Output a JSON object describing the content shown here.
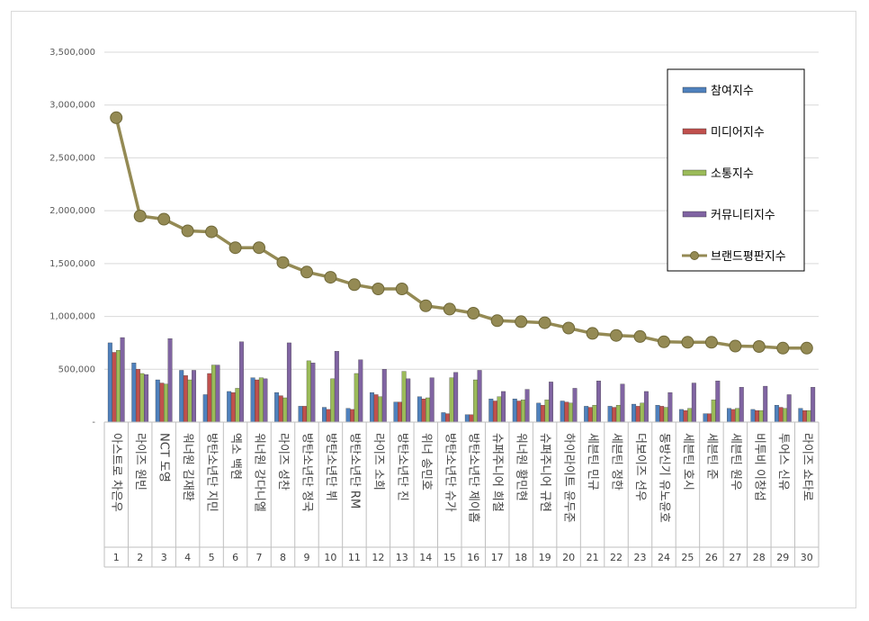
{
  "chart_data": {
    "type": "bar",
    "categories": [
      "아스트로 차은우",
      "라이즈 원빈",
      "NCT 도영",
      "워너원 김재환",
      "방탄소년단 지민",
      "엑소 백현",
      "워너원 강다니엘",
      "라이즈 성찬",
      "방탄소년단 정국",
      "방탄소년단 뷔",
      "방탄소년단 RM",
      "라이즈 소희",
      "방탄소년단 진",
      "위너 송민호",
      "방탄소년단 슈가",
      "방탄소년단 제이홉",
      "슈퍼주니어 희철",
      "워너원 황민현",
      "슈퍼주니어 규현",
      "하이라이트 윤두준",
      "세븐틴 민규",
      "세븐틴 정한",
      "더보이즈 선우",
      "동방신기 유노윤호",
      "세븐틴 호시",
      "세븐틴 준",
      "세븐틴 원우",
      "비투비 이창섭",
      "투어스 신유",
      "라이즈 쇼타로"
    ],
    "ranks": [
      "1",
      "2",
      "3",
      "4",
      "5",
      "6",
      "7",
      "8",
      "9",
      "10",
      "11",
      "12",
      "13",
      "14",
      "15",
      "16",
      "17",
      "18",
      "19",
      "20",
      "21",
      "22",
      "23",
      "24",
      "25",
      "26",
      "27",
      "28",
      "29",
      "30"
    ],
    "series": [
      {
        "name": "참여지수",
        "kind": "bar",
        "color": "#4f81bd",
        "values": [
          750000,
          560000,
          400000,
          490000,
          260000,
          290000,
          420000,
          280000,
          150000,
          140000,
          130000,
          280000,
          190000,
          240000,
          90000,
          70000,
          220000,
          220000,
          180000,
          200000,
          150000,
          150000,
          170000,
          160000,
          120000,
          80000,
          130000,
          120000,
          160000,
          130000
        ]
      },
      {
        "name": "미디어지수",
        "kind": "bar",
        "color": "#c0504d",
        "values": [
          660000,
          500000,
          370000,
          440000,
          460000,
          280000,
          400000,
          250000,
          150000,
          120000,
          120000,
          260000,
          190000,
          220000,
          80000,
          70000,
          200000,
          200000,
          160000,
          190000,
          140000,
          140000,
          150000,
          150000,
          110000,
          80000,
          120000,
          110000,
          140000,
          110000
        ]
      },
      {
        "name": "소통지수",
        "kind": "bar",
        "color": "#9bbb59",
        "values": [
          680000,
          460000,
          360000,
          400000,
          540000,
          320000,
          420000,
          230000,
          580000,
          410000,
          460000,
          240000,
          480000,
          230000,
          420000,
          400000,
          240000,
          210000,
          210000,
          180000,
          160000,
          160000,
          180000,
          140000,
          130000,
          210000,
          130000,
          110000,
          130000,
          110000
        ]
      },
      {
        "name": "커뮤니티지수",
        "kind": "bar",
        "color": "#8064a2",
        "values": [
          800000,
          450000,
          790000,
          490000,
          540000,
          760000,
          410000,
          750000,
          560000,
          670000,
          590000,
          500000,
          410000,
          420000,
          470000,
          490000,
          290000,
          310000,
          380000,
          320000,
          390000,
          360000,
          290000,
          280000,
          370000,
          390000,
          330000,
          340000,
          260000,
          330000
        ]
      },
      {
        "name": "브랜드평판지수",
        "kind": "line",
        "color": "#948a54",
        "values": [
          2880000,
          1950000,
          1920000,
          1810000,
          1800000,
          1650000,
          1650000,
          1510000,
          1420000,
          1370000,
          1300000,
          1260000,
          1260000,
          1100000,
          1070000,
          1030000,
          960000,
          950000,
          940000,
          890000,
          840000,
          820000,
          810000,
          760000,
          755000,
          755000,
          720000,
          715000,
          700000,
          700000
        ]
      }
    ],
    "y_ticks": [
      "-",
      "500,000",
      "1,000,000",
      "1,500,000",
      "2,000,000",
      "2,500,000",
      "3,000,000",
      "3,500,000"
    ],
    "ylim": [
      0,
      3500000
    ],
    "grid": true,
    "legend_position": "top-right"
  }
}
